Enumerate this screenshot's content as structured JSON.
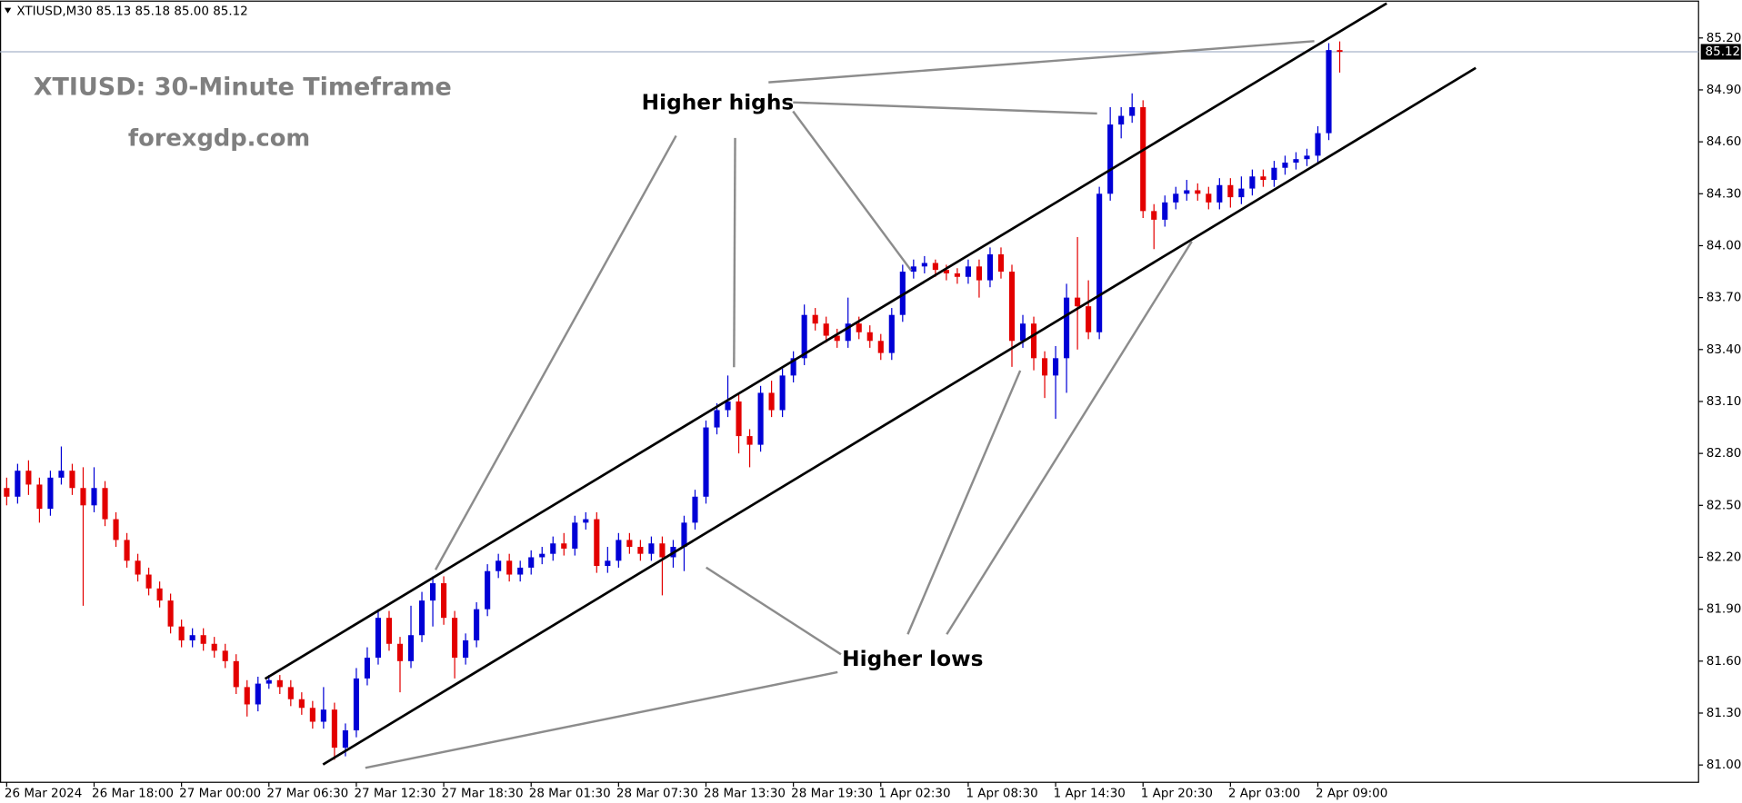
{
  "chart_data": {
    "type": "candlestick",
    "header": "XTIUSD,M30  85.13 85.18 85.00 85.12",
    "title": "XTIUSD: 30-Minute Timeframe",
    "subtitle": "forexgdp.com",
    "annotations": [
      "Higher highs",
      "Higher lows"
    ],
    "up_color": "#0000d6",
    "down_color": "#e30000",
    "last_price": 85.12,
    "ylim": [
      80.9,
      85.4
    ],
    "yticks": [
      {
        "value": 81.0,
        "label": "81.00"
      },
      {
        "value": 81.3,
        "label": "81.30"
      },
      {
        "value": 81.6,
        "label": "81.60"
      },
      {
        "value": 81.9,
        "label": "81.90"
      },
      {
        "value": 82.2,
        "label": "82.20"
      },
      {
        "value": 82.5,
        "label": "82.50"
      },
      {
        "value": 82.8,
        "label": "82.80"
      },
      {
        "value": 83.1,
        "label": "83.10"
      },
      {
        "value": 83.4,
        "label": "83.40"
      },
      {
        "value": 83.7,
        "label": "83.70"
      },
      {
        "value": 84.0,
        "label": "84.00"
      },
      {
        "value": 84.3,
        "label": "84.30"
      },
      {
        "value": 84.6,
        "label": "84.60"
      },
      {
        "value": 84.9,
        "label": "84.90"
      },
      {
        "value": 85.2,
        "label": "85.20"
      }
    ],
    "xticks": [
      {
        "value": 0,
        "label": "26 Mar 2024"
      },
      {
        "value": 8,
        "label": "26 Mar 18:00"
      },
      {
        "value": 16,
        "label": "27 Mar 00:00"
      },
      {
        "value": 24,
        "label": "27 Mar 06:30"
      },
      {
        "value": 32,
        "label": "27 Mar 12:30"
      },
      {
        "value": 40,
        "label": "27 Mar 18:30"
      },
      {
        "value": 48,
        "label": "28 Mar 01:30"
      },
      {
        "value": 56,
        "label": "28 Mar 07:30"
      },
      {
        "value": 64,
        "label": "28 Mar 13:30"
      },
      {
        "value": 72,
        "label": "28 Mar 19:30"
      },
      {
        "value": 80,
        "label": "1 Apr 02:30"
      },
      {
        "value": 88,
        "label": "1 Apr 08:30"
      },
      {
        "value": 96,
        "label": "1 Apr 14:30"
      },
      {
        "value": 104,
        "label": "1 Apr 20:30"
      },
      {
        "value": 112,
        "label": "2 Apr 03:00"
      },
      {
        "value": 120,
        "label": "2 Apr 09:00"
      }
    ],
    "series": [
      {
        "open": [
          82.6,
          82.55,
          82.7,
          82.62,
          82.48,
          82.66,
          82.7,
          82.6,
          82.5,
          82.6,
          82.42,
          82.3,
          82.18,
          82.1,
          82.02,
          81.95,
          81.8,
          81.72,
          81.75,
          81.7,
          81.66,
          81.6,
          81.45,
          81.35,
          81.47,
          81.49,
          81.45,
          81.38,
          81.33,
          81.25,
          81.32,
          81.1,
          81.2,
          81.5,
          81.62,
          81.85,
          81.7,
          81.6,
          81.75,
          81.95,
          82.05,
          81.85,
          81.62,
          81.72,
          81.9,
          82.12,
          82.18,
          82.1,
          82.14,
          82.2,
          82.22,
          82.28,
          82.25,
          82.4,
          82.42,
          82.15,
          82.18,
          82.3,
          82.26,
          82.22,
          82.28,
          82.2,
          82.26,
          82.4,
          82.55,
          82.95,
          83.05,
          83.1,
          82.9,
          82.85,
          83.15,
          83.05,
          83.25,
          83.35,
          83.6,
          83.55,
          83.48,
          83.45,
          83.55,
          83.5,
          83.45,
          83.38,
          83.6,
          83.85,
          83.88,
          83.9,
          83.86,
          83.84,
          83.82,
          83.88,
          83.8,
          83.95,
          83.85,
          83.45,
          83.55,
          83.35,
          83.25,
          83.35,
          83.7,
          83.65,
          83.5,
          84.3,
          84.7,
          84.75,
          84.8,
          84.2,
          84.15,
          84.25,
          84.3,
          84.32,
          84.3,
          84.25,
          84.35,
          84.28,
          84.33,
          84.4,
          84.38,
          84.45,
          84.48,
          84.5,
          84.52,
          84.65,
          85.13
        ],
        "high": [
          82.66,
          82.74,
          82.76,
          82.66,
          82.7,
          82.84,
          82.74,
          82.72,
          82.72,
          82.64,
          82.46,
          82.34,
          82.22,
          82.14,
          82.06,
          81.99,
          81.84,
          81.79,
          81.79,
          81.74,
          81.7,
          81.64,
          81.49,
          81.51,
          81.52,
          81.52,
          81.49,
          81.42,
          81.37,
          81.45,
          81.36,
          81.24,
          81.56,
          81.68,
          81.9,
          81.89,
          81.74,
          81.92,
          82.0,
          82.09,
          82.09,
          81.89,
          81.76,
          81.94,
          82.16,
          82.22,
          82.22,
          82.18,
          82.24,
          82.26,
          82.32,
          82.34,
          82.44,
          82.46,
          82.46,
          82.26,
          82.34,
          82.34,
          82.3,
          82.32,
          82.32,
          82.3,
          82.44,
          82.59,
          82.99,
          83.09,
          83.25,
          83.14,
          82.94,
          83.19,
          83.22,
          83.29,
          83.39,
          83.66,
          83.64,
          83.59,
          83.52,
          83.7,
          83.59,
          83.54,
          83.49,
          83.64,
          83.89,
          83.92,
          83.94,
          83.92,
          83.89,
          83.87,
          83.92,
          83.92,
          83.99,
          83.99,
          83.89,
          83.6,
          83.59,
          83.39,
          83.42,
          83.78,
          84.05,
          83.8,
          84.34,
          84.8,
          84.8,
          84.88,
          84.84,
          84.24,
          84.29,
          84.34,
          84.38,
          84.36,
          84.34,
          84.39,
          84.39,
          84.4,
          84.44,
          84.44,
          84.49,
          84.52,
          84.54,
          84.56,
          84.69,
          85.17,
          85.18
        ],
        "low": [
          82.5,
          82.51,
          82.56,
          82.4,
          82.44,
          82.62,
          82.56,
          81.92,
          82.46,
          82.38,
          82.26,
          82.14,
          82.06,
          81.98,
          81.91,
          81.76,
          81.68,
          81.68,
          81.66,
          81.62,
          81.56,
          81.41,
          81.28,
          81.31,
          81.44,
          81.41,
          81.34,
          81.29,
          81.21,
          81.21,
          81.03,
          81.05,
          81.16,
          81.46,
          81.58,
          81.66,
          81.42,
          81.56,
          81.71,
          81.8,
          81.81,
          81.5,
          81.58,
          81.68,
          81.86,
          82.08,
          82.06,
          82.06,
          82.1,
          82.16,
          82.18,
          82.21,
          82.21,
          82.36,
          82.11,
          82.11,
          82.14,
          82.22,
          82.18,
          82.18,
          81.98,
          82.14,
          82.12,
          82.36,
          82.51,
          82.91,
          83.01,
          82.8,
          82.72,
          82.81,
          83.01,
          83.01,
          83.21,
          83.31,
          83.51,
          83.44,
          83.41,
          83.41,
          83.46,
          83.41,
          83.34,
          83.34,
          83.56,
          83.81,
          83.84,
          83.82,
          83.8,
          83.78,
          83.78,
          83.7,
          83.76,
          83.81,
          83.3,
          83.41,
          83.28,
          83.12,
          83.0,
          83.15,
          83.4,
          83.46,
          83.46,
          84.26,
          84.62,
          84.71,
          84.16,
          83.98,
          84.11,
          84.21,
          84.26,
          84.26,
          84.21,
          84.21,
          84.22,
          84.24,
          84.29,
          84.34,
          84.34,
          84.41,
          84.44,
          84.46,
          84.48,
          84.61,
          85.0
        ],
        "close": [
          82.55,
          82.7,
          82.62,
          82.48,
          82.66,
          82.7,
          82.6,
          82.5,
          82.6,
          82.42,
          82.3,
          82.18,
          82.1,
          82.02,
          81.95,
          81.8,
          81.72,
          81.75,
          81.7,
          81.66,
          81.6,
          81.45,
          81.35,
          81.47,
          81.49,
          81.45,
          81.38,
          81.33,
          81.25,
          81.32,
          81.1,
          81.2,
          81.5,
          81.62,
          81.85,
          81.7,
          81.6,
          81.75,
          81.95,
          82.05,
          81.85,
          81.62,
          81.72,
          81.9,
          82.12,
          82.18,
          82.1,
          82.14,
          82.2,
          82.22,
          82.28,
          82.25,
          82.4,
          82.42,
          82.15,
          82.18,
          82.3,
          82.26,
          82.22,
          82.28,
          82.2,
          82.26,
          82.4,
          82.55,
          82.95,
          83.05,
          83.1,
          82.9,
          82.85,
          83.15,
          83.05,
          83.25,
          83.35,
          83.6,
          83.55,
          83.48,
          83.45,
          83.55,
          83.5,
          83.45,
          83.38,
          83.6,
          83.85,
          83.88,
          83.9,
          83.86,
          83.84,
          83.82,
          83.88,
          83.8,
          83.95,
          83.85,
          83.45,
          83.55,
          83.35,
          83.25,
          83.35,
          83.7,
          83.65,
          83.5,
          84.3,
          84.7,
          84.75,
          84.8,
          84.2,
          84.15,
          84.25,
          84.3,
          84.32,
          84.3,
          84.25,
          84.35,
          84.28,
          84.33,
          84.4,
          84.38,
          84.45,
          84.48,
          84.5,
          84.52,
          84.65,
          85.13,
          85.12
        ]
      }
    ]
  }
}
